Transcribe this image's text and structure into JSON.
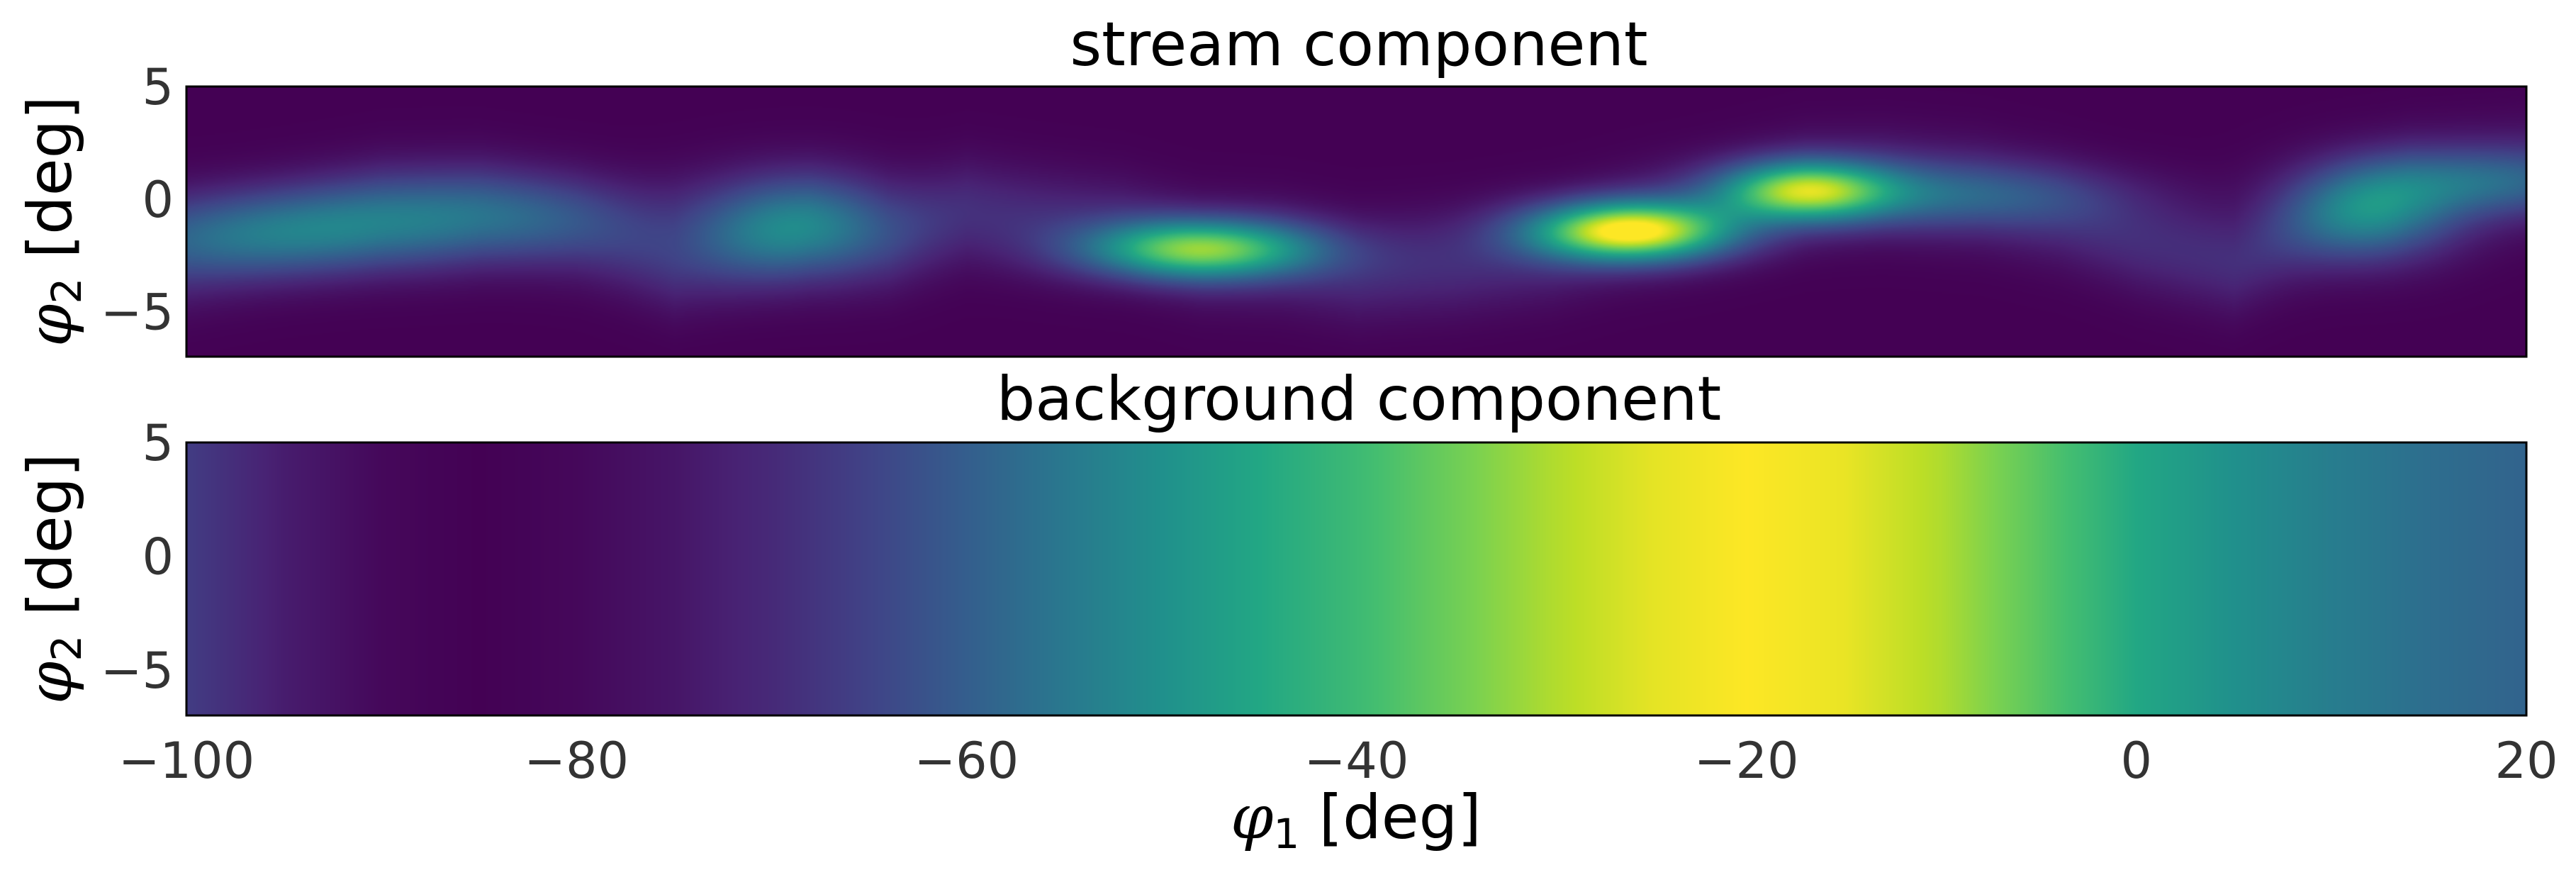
{
  "chart_data": [
    {
      "type": "heatmap",
      "title": "stream component",
      "ylabel": {
        "symbol": "φ",
        "subscript": "2",
        "unit": " [deg]"
      },
      "xlim": [
        -100,
        20
      ],
      "ylim": [
        -7,
        5
      ],
      "yticks": [
        5,
        0,
        -5
      ],
      "ytick_labels": [
        "5",
        "0",
        "−5"
      ],
      "x_axis_labels_shown": false,
      "colormap": "viridis",
      "background_level": 0.0,
      "track_center_phi2": [
        [
          -100,
          -2.5
        ],
        [
          -95,
          -1.5
        ],
        [
          -90,
          -0.5
        ],
        [
          -85,
          -0.4
        ],
        [
          -80,
          -1.3
        ],
        [
          -75,
          -2.8
        ],
        [
          -72,
          -2.2
        ],
        [
          -68,
          -1.2
        ],
        [
          -64,
          -1.5
        ],
        [
          -60,
          -0.5
        ],
        [
          -56,
          -1.0
        ],
        [
          -52,
          -1.4
        ],
        [
          -48,
          -2.3
        ],
        [
          -44,
          -2.5
        ],
        [
          -40,
          -3.1
        ],
        [
          -35,
          -2.8
        ],
        [
          -30,
          -2.2
        ],
        [
          -26,
          -1.3
        ],
        [
          -22,
          -0.6
        ],
        [
          -17,
          0.5
        ],
        [
          -13,
          0.6
        ],
        [
          -8,
          0.2
        ],
        [
          -4,
          -0.6
        ],
        [
          0,
          -1.8
        ],
        [
          5,
          -2.8
        ],
        [
          8,
          -1.6
        ],
        [
          11,
          -0.5
        ],
        [
          14,
          0.5
        ],
        [
          17,
          0.8
        ],
        [
          20,
          1.0
        ]
      ],
      "density_blobs": [
        {
          "phi1": -95,
          "phi2": -1.5,
          "amp": 0.28,
          "sx": 7,
          "sy": 1.3
        },
        {
          "phi1": -85,
          "phi2": -0.6,
          "amp": 0.18,
          "sx": 6,
          "sy": 1.3
        },
        {
          "phi1": -69,
          "phi2": -1.2,
          "amp": 0.35,
          "sx": 3.5,
          "sy": 1.6
        },
        {
          "phi1": -48,
          "phi2": -2.2,
          "amp": 0.72,
          "sx": 4,
          "sy": 0.9
        },
        {
          "phi1": -26,
          "phi2": -1.4,
          "amp": 0.95,
          "sx": 3.5,
          "sy": 0.9
        },
        {
          "phi1": -17,
          "phi2": 0.4,
          "amp": 0.72,
          "sx": 3,
          "sy": 0.9
        },
        {
          "phi1": -10,
          "phi2": 0.2,
          "amp": 0.22,
          "sx": 6,
          "sy": 1.0
        },
        {
          "phi1": 12,
          "phi2": -0.5,
          "amp": 0.38,
          "sx": 3,
          "sy": 1.5
        },
        {
          "phi1": 18,
          "phi2": 0.8,
          "amp": 0.22,
          "sx": 4,
          "sy": 1.0
        }
      ]
    },
    {
      "type": "heatmap",
      "title": "background component",
      "ylabel": {
        "symbol": "φ",
        "subscript": "2",
        "unit": " [deg]"
      },
      "xlabel": {
        "symbol": "φ",
        "subscript": "1",
        "unit": " [deg]"
      },
      "xlim": [
        -100,
        20
      ],
      "ylim": [
        -7,
        5
      ],
      "yticks": [
        5,
        0,
        -5
      ],
      "ytick_labels": [
        "5",
        "0",
        "−5"
      ],
      "xticks": [
        -100,
        -80,
        -60,
        -40,
        -20,
        0,
        20
      ],
      "xtick_labels": [
        "−100",
        "−80",
        "−60",
        "−40",
        "−20",
        "0",
        "20"
      ],
      "colormap": "viridis",
      "profile_phi1": [
        -100,
        -95,
        -90,
        -85,
        -80,
        -75,
        -70,
        -65,
        -60,
        -55,
        -50,
        -45,
        -40,
        -35,
        -30,
        -25,
        -20,
        -15,
        -10,
        -5,
        0,
        5,
        10,
        15,
        20
      ],
      "profile_level": [
        0.18,
        0.08,
        0.02,
        0.0,
        0.02,
        0.06,
        0.12,
        0.2,
        0.3,
        0.4,
        0.5,
        0.6,
        0.68,
        0.78,
        0.88,
        0.96,
        1.0,
        0.97,
        0.88,
        0.74,
        0.6,
        0.5,
        0.42,
        0.36,
        0.32
      ]
    }
  ]
}
